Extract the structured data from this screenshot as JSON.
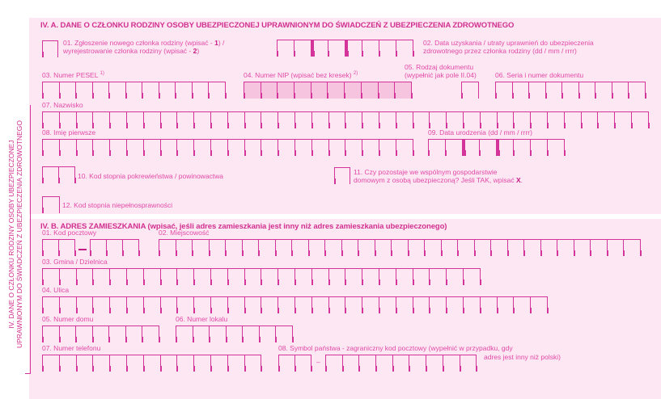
{
  "section_a": {
    "title": "IV. A. DANE O CZŁONKU RODZINY OSOBY UBEZPIECZONEJ UPRAWNIONYM DO ŚWIADCZEŃ Z UBEZPIECZENIA ZDROWOTNEGO",
    "f01_line1_pre": "01. Zgłoszenie nowego członka rodziny (wpisać - ",
    "f01_line1_val": "1",
    "f01_line1_post": ") /",
    "f01_line2_pre": "wyrejestrowanie członka rodziny (wpisać - ",
    "f01_line2_val": "2",
    "f01_line2_post": ")",
    "f02_line1": "02. Data uzyskania / utraty uprawnień do ubezpieczenia",
    "f02_line2": "zdrowotnego przez członka rodziny (dd / mm / rrrr)",
    "f03": "03. Numer PESEL",
    "f03_sup": "1)",
    "f04": "04. Numer NIP (wpisać bez kresek)",
    "f04_sup": "2)",
    "f05_line1": "05. Rodzaj dokumentu",
    "f05_line2": "(wypełnić jak pole II.04)",
    "f06": "06. Seria i numer dokumentu",
    "f07": "07. Nazwisko",
    "f08": "08. Imię pierwsze",
    "f09": "09. Data urodzenia (dd / mm / rrrr)",
    "f10": "10. Kod stopnia pokrewieństwa / powinowactwa",
    "f11_line1": "11. Czy pozostaje we wspólnym gospodarstwie",
    "f11_line2_pre": "domowym z osobą ubezpieczoną? Jeśli TAK, wpisać ",
    "f11_line2_val": "X",
    "f11_line2_post": ".",
    "f12": "12. Kod stopnia niepełnosprawności"
  },
  "section_b": {
    "title": "IV. B. ADRES ZAMIESZKANIA (wpisać, jeśli adres zamieszkania jest inny niż adres zamieszkania ubezpieczonego)",
    "f01": "01. Kod pocztowy",
    "f02": "02. Miejscowość",
    "f03": "03. Gmina / Dzielnica",
    "f04": "04. Ulica",
    "f05": "05. Numer domu",
    "f06": "06. Numer lokalu",
    "f07": "07. Numer telefonu",
    "f08_line1": "08. Symbol państwa - zagraniczny kod pocztowy (wypełnić w przypadku, gdy",
    "f08_line2": "adres jest inny niż polski)",
    "dash": "–"
  },
  "side_label": {
    "line1": "IV. DANE O CZŁONKU RODZINY OSOBY UBEZPIECZONEJ",
    "line2": "UPRAWNIONYM DO ŚWIADCZEŃ Z UBEZPIECZENIA ZDROWOTNEGO"
  },
  "colors": {
    "accent": "#d4349a",
    "background": "#fde7f3",
    "shaded": "#f6c4df"
  }
}
